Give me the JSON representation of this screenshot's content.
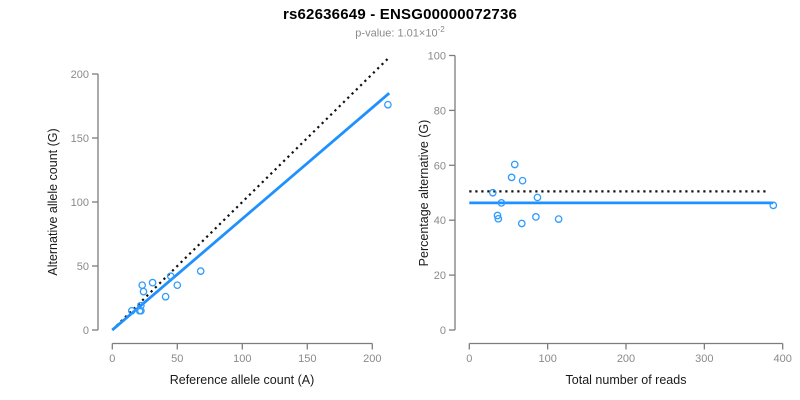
{
  "header": {
    "title": "rs62636649 - ENSG00000072736",
    "pvalue_label": "p-value: 1.01×10",
    "pvalue_exponent": "-2"
  },
  "colors": {
    "accent_blue": "#1E90FF",
    "point_blue": "#2E9BFF",
    "dotted_black": "#111111",
    "axis_gray": "#7d7d7d",
    "tick_label_gray": "#8a8a8a",
    "axis_title_black": "#1a1a1a",
    "background": "#ffffff"
  },
  "chart_data": [
    {
      "type": "scatter",
      "panel": "allele-counts",
      "xlabel": "Reference allele count (A)",
      "ylabel": "Alternative allele count (G)",
      "xticks": [
        0,
        50,
        100,
        150,
        200
      ],
      "yticks": [
        0,
        50,
        100,
        150,
        200
      ],
      "xlim": [
        0,
        215
      ],
      "ylim": [
        0,
        215
      ],
      "grid": false,
      "legend": null,
      "marker": "open-circle",
      "points": [
        [
          212,
          176
        ],
        [
          23,
          35
        ],
        [
          24,
          30
        ],
        [
          31,
          37
        ],
        [
          15,
          15
        ],
        [
          22,
          19
        ],
        [
          45,
          42
        ],
        [
          21,
          15
        ],
        [
          22,
          15
        ],
        [
          50,
          35
        ],
        [
          41,
          26
        ],
        [
          68,
          46
        ]
      ],
      "lines": [
        {
          "name": "identity-line",
          "x1": 0,
          "y1": 0,
          "x2": 212,
          "y2": 212,
          "style": "dotted",
          "color": "black"
        },
        {
          "name": "fit-line",
          "x1": 0,
          "y1": 0,
          "x2": 213,
          "y2": 185,
          "style": "solid",
          "color": "accent"
        }
      ]
    },
    {
      "type": "scatter",
      "panel": "percentage-alternative",
      "xlabel": "Total number of reads",
      "ylabel": "Percentage alternative (G)",
      "xticks": [
        0,
        100,
        200,
        300,
        400
      ],
      "yticks": [
        0,
        20,
        40,
        60,
        80,
        100
      ],
      "xlim": [
        0,
        400
      ],
      "ylim": [
        0,
        100
      ],
      "grid": false,
      "legend": null,
      "marker": "open-circle",
      "points": [
        [
          388,
          45.4
        ],
        [
          58,
          60.3
        ],
        [
          54,
          55.6
        ],
        [
          68,
          54.4
        ],
        [
          30,
          50.0
        ],
        [
          41,
          46.3
        ],
        [
          87,
          48.3
        ],
        [
          36,
          41.7
        ],
        [
          37,
          40.5
        ],
        [
          85,
          41.2
        ],
        [
          67,
          38.8
        ],
        [
          114,
          40.4
        ]
      ],
      "lines": [
        {
          "name": "null-line",
          "x1": 0,
          "y1": 50.5,
          "x2": 382,
          "y2": 50.5,
          "style": "dotted",
          "color": "black"
        },
        {
          "name": "mean-line",
          "x1": 0,
          "y1": 46.3,
          "x2": 388,
          "y2": 46.3,
          "style": "solid",
          "color": "accent"
        }
      ]
    }
  ]
}
